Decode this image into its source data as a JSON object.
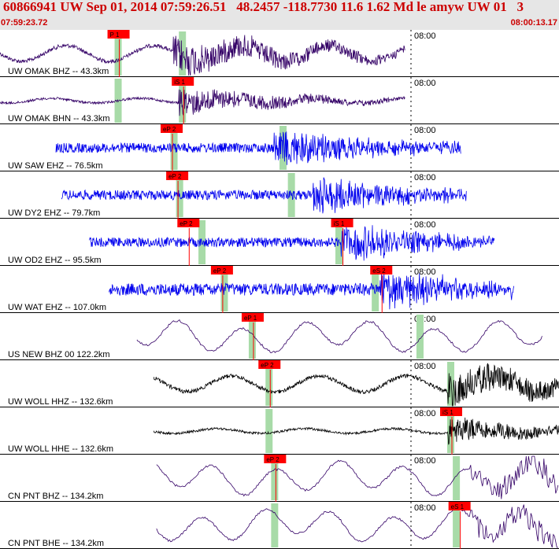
{
  "header": {
    "title": "60866941 UW Sep 01, 2014 07:59:26.51   48.2457 -118.7730 11.6 1.62 Md le amyw UW 01   3",
    "start_time": "07:59:23.72",
    "end_time": "08:00:13.17"
  },
  "colors": {
    "header_bg": "#e6e6e6",
    "header_text": "#cc0000",
    "pick_box": "#ff0000",
    "pick_line": "#ff0000",
    "pick_window": "#a8dba8",
    "trace_blue": "#0000ee",
    "trace_purple": "#330066",
    "trace_black": "#000000"
  },
  "minute_label": "08:00",
  "traces": [
    {
      "label": "UW OMAK BHZ -- 43.3km",
      "color": "purple",
      "start": 0.0,
      "end": 0.725,
      "amp": 0.55,
      "kind": "osc",
      "onset": 0.31,
      "p_pick": "P 1",
      "p_pos": 0.205,
      "s_pick": "",
      "s_pos": null,
      "win1": 0.205,
      "win2": 0.32
    },
    {
      "label": "UW OMAK BHN -- 43.3km",
      "color": "purple",
      "start": 0.0,
      "end": 0.725,
      "amp": 0.12,
      "kind": "flat",
      "onset": 0.32,
      "p_pick": "iS 1",
      "p_pos": 0.32,
      "s_pick": "",
      "s_pos": null,
      "win1": 0.205,
      "win2": 0.32
    },
    {
      "label": "UW SAW EHZ -- 76.5km",
      "color": "blue",
      "start": 0.1,
      "end": 0.825,
      "amp": 0.12,
      "kind": "noise",
      "onset": 0.49,
      "p_pick": "eP 2",
      "p_pos": 0.3,
      "s_pick": "",
      "s_pos": null,
      "win1": 0.305,
      "win2": 0.5
    },
    {
      "label": "UW DY2 EHZ -- 79.7km",
      "color": "blue",
      "start": 0.11,
      "end": 0.835,
      "amp": 0.12,
      "kind": "noise",
      "onset": 0.56,
      "p_pick": "eP 2",
      "p_pos": 0.31,
      "s_pick": "",
      "s_pos": null,
      "win1": 0.315,
      "win2": 0.515
    },
    {
      "label": "UW OD2 EHZ -- 95.5km",
      "color": "blue",
      "start": 0.16,
      "end": 0.885,
      "amp": 0.1,
      "kind": "noise",
      "onset": 0.61,
      "p_pick": "eP 2",
      "p_pos": 0.33,
      "s_pick": "iS 1",
      "s_pos": 0.605,
      "win1": 0.355,
      "win2": 0.6
    },
    {
      "label": "UW WAT EHZ -- 107.0km",
      "color": "blue",
      "start": 0.195,
      "end": 0.92,
      "amp": 0.28,
      "kind": "noise",
      "onset": 0.68,
      "p_pick": "eP 2",
      "p_pos": 0.39,
      "s_pick": "eS 2",
      "s_pos": 0.675,
      "win1": 0.395,
      "win2": 0.665
    },
    {
      "label": "US NEW BHZ 00 122.2km",
      "color": "purple",
      "start": 0.245,
      "end": 0.97,
      "amp": 0.6,
      "kind": "slow",
      "onset": 9,
      "p_pick": "eP 1",
      "p_pos": 0.445,
      "s_pick": "",
      "s_pos": null,
      "win1": 0.445,
      "win2": 0.745
    },
    {
      "label": "UW WOLL HHZ -- 132.6km",
      "color": "black",
      "start": 0.275,
      "end": 1.0,
      "amp": 0.28,
      "kind": "osc",
      "onset": 0.8,
      "p_pick": "eP 2",
      "p_pos": 0.475,
      "s_pick": "",
      "s_pos": null,
      "win1": 0.475,
      "win2": 0.8
    },
    {
      "label": "UW WOLL HHE -- 132.6km",
      "color": "black",
      "start": 0.275,
      "end": 1.0,
      "amp": 0.1,
      "kind": "flat",
      "onset": 0.8,
      "p_pick": "iS 1",
      "p_pos": 0.8,
      "s_pick": "",
      "s_pos": null,
      "win1": 0.475,
      "win2": 0.8
    },
    {
      "label": "CN PNT BHZ -- 134.2km",
      "color": "purple",
      "start": 0.28,
      "end": 1.0,
      "amp": 0.55,
      "kind": "slow",
      "onset": 0.84,
      "p_pick": "eP 2",
      "p_pos": 0.485,
      "s_pick": "",
      "s_pos": null,
      "win1": 0.485,
      "win2": 0.81
    },
    {
      "label": "CN PNT BHE -- 134.2km",
      "color": "purple",
      "start": 0.28,
      "end": 1.0,
      "amp": 0.55,
      "kind": "slow",
      "onset": 0.84,
      "p_pick": "eS 1",
      "p_pos": 0.815,
      "s_pick": "",
      "s_pos": null,
      "win1": 0.485,
      "win2": 0.81
    }
  ]
}
